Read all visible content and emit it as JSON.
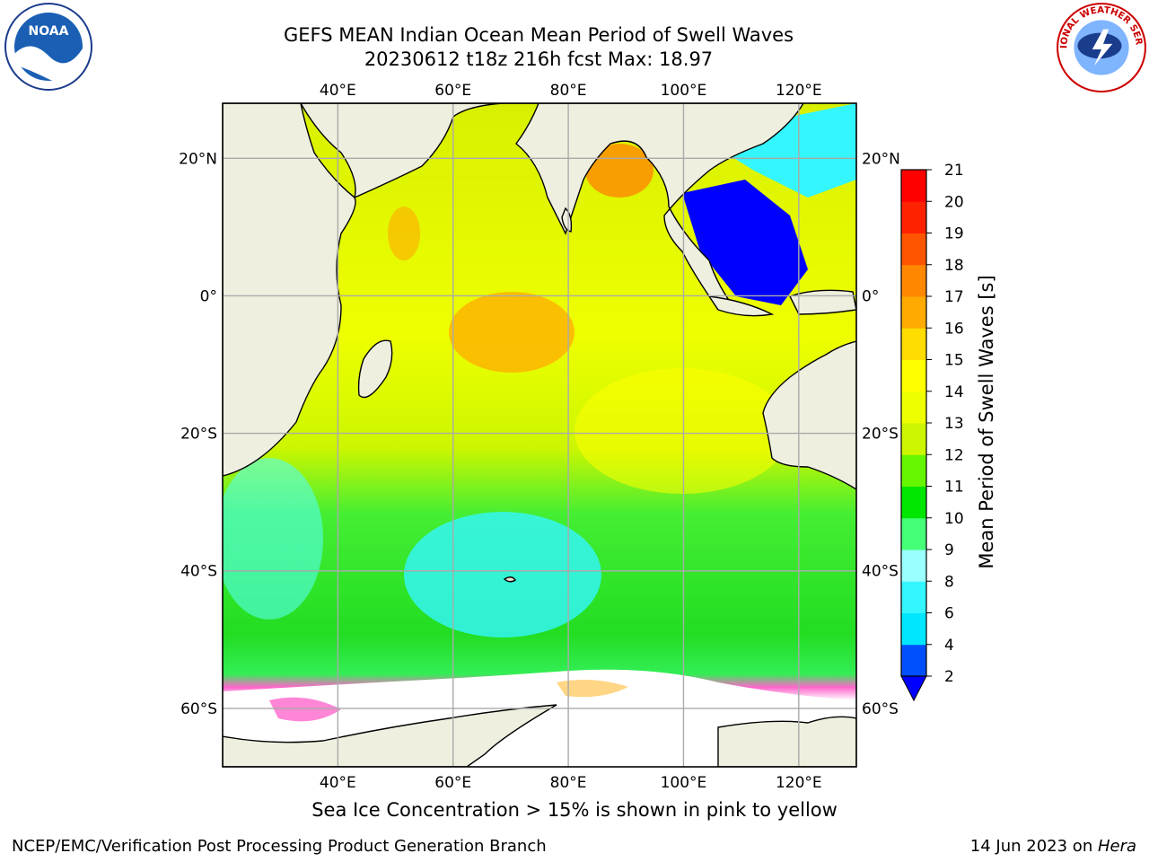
{
  "title_line1": "GEFS MEAN Indian Ocean Mean Period of Swell Waves",
  "title_line2": "20230612 t18z 216h fcst   Max: 18.97",
  "note": "Sea Ice Concentration > 15% is shown in pink to yellow",
  "credit": "NCEP/EMC/Verification Post Processing Product Generation Branch",
  "date_prefix": "14 Jun 2023 on ",
  "date_host": "Hera",
  "logos": {
    "left": "noaa-logo",
    "right": "nws-logo",
    "left_text": "NOAA",
    "right_text": "NATIONAL WEATHER SERVICE"
  },
  "map": {
    "lon_ticks": [
      "40°E",
      "60°E",
      "80°E",
      "100°E",
      "120°E"
    ],
    "lat_ticks": [
      "20°N",
      "0°",
      "20°S",
      "40°S",
      "60°S"
    ],
    "lon_values": [
      40,
      60,
      80,
      100,
      120
    ],
    "lat_values": [
      20,
      0,
      -20,
      -40,
      -60
    ],
    "extent": {
      "lon": [
        20,
        130
      ],
      "lat": [
        -68.5,
        28
      ]
    },
    "land_color": "#efefdf",
    "grid_color": "#aaaaaa"
  },
  "colorbar": {
    "label": "Mean Period of Swell Waves [s]",
    "ticks": [
      "2",
      "4",
      "6",
      "8",
      "9",
      "10",
      "11",
      "12",
      "13",
      "14",
      "15",
      "16",
      "17",
      "18",
      "19",
      "20",
      "21"
    ],
    "colors": [
      "#0050ff",
      "#00e6ff",
      "#33f6ff",
      "#99ffff",
      "#44ff77",
      "#00e600",
      "#66f600",
      "#ccf600",
      "#eeff00",
      "#ffff00",
      "#ffdd00",
      "#ffaa00",
      "#ff8800",
      "#ff5500",
      "#ff2200",
      "#ff0000"
    ],
    "under_color": "#0000ff"
  }
}
